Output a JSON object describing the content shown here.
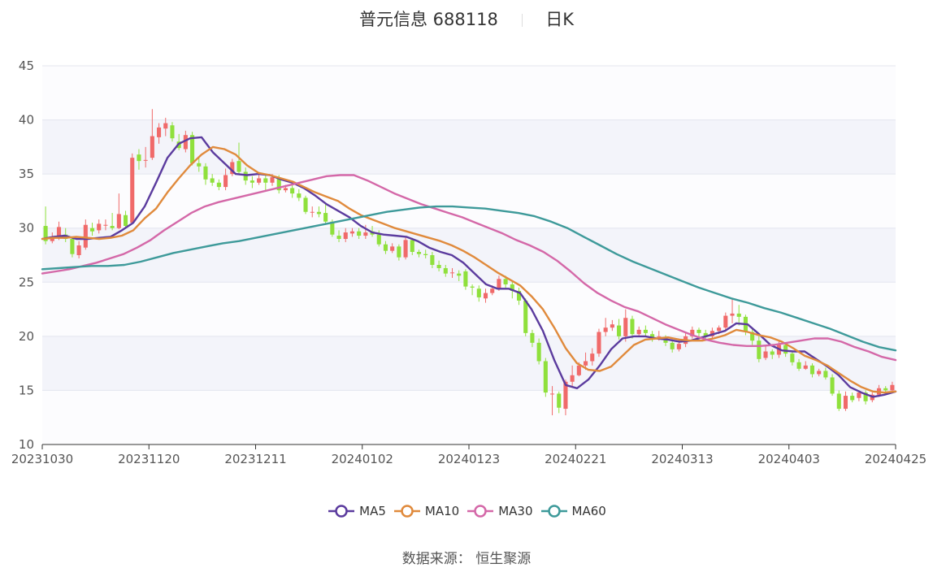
{
  "header": {
    "stock": "普元信息 688118",
    "period": "日K"
  },
  "source": {
    "label": "数据来源：",
    "provider": "恒生聚源"
  },
  "chart_data": {
    "type": "candlestick",
    "ylim": [
      10,
      45
    ],
    "yticks": [
      10,
      15,
      20,
      25,
      30,
      35,
      40,
      45
    ],
    "xticks": [
      "20231030",
      "20231120",
      "20231211",
      "20240102",
      "20240123",
      "20240221",
      "20240313",
      "20240403",
      "20240425"
    ],
    "up_color": "#f06a6a",
    "down_color": "#8fe03c",
    "series": [
      {
        "name": "MA5",
        "color": "#5b3b9e",
        "values": [
          29.0,
          29.2,
          29.3,
          29.0,
          29.0,
          29.1,
          29.2,
          29.8,
          30.5,
          32.0,
          34.2,
          36.5,
          37.8,
          38.3,
          38.4,
          37.0,
          36.0,
          35.0,
          34.9,
          35.0,
          34.9,
          34.5,
          34.2,
          33.7,
          33.0,
          32.2,
          31.6,
          31.0,
          30.2,
          29.6,
          29.4,
          29.3,
          29.2,
          28.8,
          28.2,
          27.8,
          27.5,
          26.8,
          25.8,
          24.8,
          24.4,
          24.4,
          24.0,
          22.5,
          20.5,
          17.8,
          15.5,
          15.2,
          16.0,
          17.3,
          18.8,
          19.8,
          20.0,
          20.0,
          19.8,
          19.7,
          19.5,
          19.6,
          19.9,
          20.2,
          20.5,
          21.2,
          21.1,
          20.2,
          19.2,
          18.7,
          18.6,
          18.6,
          17.9,
          17.2,
          16.4,
          15.3,
          14.8,
          14.4,
          14.6,
          14.9
        ]
      },
      {
        "name": "MA10",
        "color": "#e08a3c",
        "values": [
          29.0,
          29.1,
          29.1,
          29.2,
          29.1,
          29.0,
          29.1,
          29.3,
          29.8,
          30.9,
          31.8,
          33.3,
          34.6,
          35.8,
          36.8,
          37.5,
          37.3,
          36.8,
          35.8,
          35.1,
          34.9,
          34.6,
          34.3,
          33.8,
          33.3,
          32.9,
          32.5,
          31.8,
          31.2,
          30.8,
          30.4,
          30.0,
          29.7,
          29.4,
          29.1,
          28.8,
          28.4,
          27.9,
          27.3,
          26.6,
          25.9,
          25.3,
          24.7,
          23.7,
          22.5,
          20.8,
          18.9,
          17.5,
          16.9,
          16.8,
          17.2,
          18.2,
          19.2,
          19.7,
          19.8,
          19.9,
          19.7,
          19.6,
          19.6,
          19.8,
          20.1,
          20.6,
          20.4,
          20.1,
          19.9,
          19.5,
          18.9,
          18.2,
          17.8,
          17.3,
          16.6,
          15.9,
          15.3,
          14.9,
          14.8,
          14.9
        ]
      },
      {
        "name": "MA30",
        "color": "#d468a8",
        "values": [
          25.8,
          26.0,
          26.2,
          26.5,
          26.8,
          27.2,
          27.6,
          28.2,
          28.9,
          29.8,
          30.6,
          31.4,
          32.0,
          32.4,
          32.7,
          33.0,
          33.3,
          33.6,
          33.9,
          34.2,
          34.5,
          34.8,
          34.9,
          34.9,
          34.4,
          33.8,
          33.2,
          32.7,
          32.2,
          31.8,
          31.4,
          31.0,
          30.5,
          30.0,
          29.5,
          28.9,
          28.4,
          27.8,
          27.0,
          26.0,
          24.9,
          24.0,
          23.3,
          22.7,
          22.3,
          21.7,
          21.1,
          20.6,
          20.1,
          19.7,
          19.4,
          19.2,
          19.1,
          19.1,
          19.2,
          19.4,
          19.6,
          19.8,
          19.8,
          19.5,
          19.0,
          18.6,
          18.1,
          17.8
        ]
      },
      {
        "name": "MA60",
        "color": "#3e9a9a",
        "values": [
          26.2,
          26.3,
          26.4,
          26.5,
          26.5,
          26.6,
          26.9,
          27.3,
          27.7,
          28.0,
          28.3,
          28.6,
          28.8,
          29.1,
          29.4,
          29.7,
          30.0,
          30.3,
          30.6,
          30.9,
          31.2,
          31.5,
          31.7,
          31.9,
          32.0,
          32.0,
          31.9,
          31.8,
          31.6,
          31.4,
          31.1,
          30.6,
          30.0,
          29.2,
          28.4,
          27.6,
          26.9,
          26.3,
          25.7,
          25.1,
          24.5,
          24.0,
          23.5,
          23.1,
          22.6,
          22.2,
          21.7,
          21.2,
          20.7,
          20.1,
          19.5,
          19.0,
          18.7
        ]
      }
    ],
    "candles": [
      [
        30.2,
        28.8,
        32.0,
        28.5
      ],
      [
        28.8,
        29.2,
        29.6,
        28.6
      ],
      [
        29.2,
        30.1,
        30.6,
        28.9
      ],
      [
        29.4,
        29.0,
        30.0,
        28.7
      ],
      [
        29.0,
        27.6,
        29.2,
        27.3
      ],
      [
        27.5,
        28.4,
        28.8,
        27.2
      ],
      [
        28.2,
        30.3,
        30.8,
        28.0
      ],
      [
        30.0,
        29.7,
        30.5,
        29.3
      ],
      [
        29.8,
        30.4,
        30.8,
        29.5
      ],
      [
        30.3,
        30.3,
        30.8,
        29.8
      ],
      [
        30.2,
        30.0,
        31.4,
        29.8
      ],
      [
        30.0,
        31.3,
        33.2,
        29.9
      ],
      [
        31.2,
        30.2,
        31.6,
        30.0
      ],
      [
        30.5,
        36.5,
        36.9,
        30.4
      ],
      [
        36.8,
        36.2,
        37.3,
        35.4
      ],
      [
        36.3,
        36.3,
        37.5,
        35.6
      ],
      [
        36.5,
        38.5,
        41.0,
        36.3
      ],
      [
        38.4,
        39.3,
        39.7,
        37.8
      ],
      [
        39.2,
        39.7,
        40.2,
        38.5
      ],
      [
        39.5,
        38.3,
        39.8,
        38.0
      ],
      [
        38.0,
        37.4,
        38.7,
        37.2
      ],
      [
        37.3,
        38.6,
        39.0,
        37.0
      ],
      [
        38.6,
        36.0,
        38.9,
        35.8
      ],
      [
        36.0,
        35.7,
        36.5,
        35.2
      ],
      [
        35.7,
        34.5,
        36.0,
        34.0
      ],
      [
        34.6,
        34.2,
        35.0,
        33.9
      ],
      [
        34.2,
        33.8,
        34.5,
        33.5
      ],
      [
        33.8,
        34.9,
        35.5,
        33.5
      ],
      [
        35.0,
        36.1,
        36.4,
        34.8
      ],
      [
        36.2,
        35.2,
        37.9,
        35.0
      ],
      [
        35.2,
        34.4,
        35.6,
        34.0
      ],
      [
        34.4,
        34.2,
        34.8,
        33.7
      ],
      [
        34.2,
        34.6,
        35.0,
        34.0
      ],
      [
        34.6,
        34.2,
        35.0,
        33.5
      ],
      [
        34.2,
        34.7,
        35.0,
        33.9
      ],
      [
        34.7,
        33.5,
        34.9,
        33.2
      ],
      [
        33.5,
        33.7,
        34.0,
        33.3
      ],
      [
        33.7,
        33.2,
        34.0,
        32.8
      ],
      [
        33.2,
        32.8,
        33.6,
        32.5
      ],
      [
        32.8,
        31.5,
        33.0,
        31.3
      ],
      [
        31.5,
        31.5,
        32.0,
        31.0
      ],
      [
        31.5,
        31.3,
        32.0,
        31.0
      ],
      [
        31.4,
        30.6,
        32.2,
        30.3
      ],
      [
        30.6,
        29.4,
        30.8,
        29.2
      ],
      [
        29.3,
        29.0,
        29.8,
        28.7
      ],
      [
        29.0,
        29.6,
        30.0,
        28.7
      ],
      [
        29.5,
        29.7,
        30.0,
        29.2
      ],
      [
        29.7,
        29.3,
        30.0,
        29.0
      ],
      [
        29.3,
        29.6,
        30.3,
        29.0
      ],
      [
        29.7,
        29.4,
        30.2,
        29.2
      ],
      [
        29.4,
        28.5,
        29.8,
        28.3
      ],
      [
        28.5,
        27.9,
        28.8,
        27.6
      ],
      [
        27.9,
        28.3,
        28.6,
        27.7
      ],
      [
        28.3,
        27.3,
        28.5,
        27.0
      ],
      [
        27.3,
        28.9,
        29.2,
        27.1
      ],
      [
        28.9,
        27.8,
        29.1,
        27.5
      ],
      [
        27.8,
        27.6,
        28.0,
        27.3
      ],
      [
        27.6,
        27.5,
        28.0,
        27.2
      ],
      [
        27.5,
        26.6,
        27.8,
        26.3
      ],
      [
        26.6,
        26.3,
        27.0,
        26.0
      ],
      [
        26.3,
        25.8,
        26.6,
        25.5
      ],
      [
        25.9,
        25.9,
        26.3,
        25.4
      ],
      [
        25.8,
        25.6,
        26.1,
        25.1
      ],
      [
        26.0,
        24.6,
        26.2,
        24.3
      ],
      [
        24.6,
        24.5,
        24.8,
        23.8
      ],
      [
        24.4,
        23.6,
        24.7,
        23.2
      ],
      [
        23.5,
        24.0,
        24.4,
        23.1
      ],
      [
        24.0,
        24.4,
        24.7,
        23.8
      ],
      [
        24.4,
        25.3,
        25.6,
        24.2
      ],
      [
        25.3,
        24.8,
        25.6,
        24.4
      ],
      [
        24.8,
        24.2,
        25.1,
        23.5
      ],
      [
        24.2,
        23.3,
        24.5,
        22.9
      ],
      [
        23.3,
        20.3,
        23.5,
        20.0
      ],
      [
        20.3,
        19.4,
        20.6,
        19.0
      ],
      [
        19.4,
        17.7,
        19.8,
        17.4
      ],
      [
        17.7,
        14.8,
        18.0,
        14.4
      ],
      [
        14.7,
        14.7,
        15.4,
        12.7
      ],
      [
        14.7,
        13.4,
        14.9,
        12.9
      ],
      [
        13.3,
        15.8,
        16.0,
        12.7
      ],
      [
        15.8,
        16.4,
        17.3,
        15.4
      ],
      [
        16.4,
        17.3,
        17.6,
        16.3
      ],
      [
        17.3,
        17.7,
        18.5,
        16.9
      ],
      [
        17.7,
        18.4,
        18.9,
        17.3
      ],
      [
        18.4,
        20.4,
        20.7,
        18.1
      ],
      [
        20.4,
        20.8,
        21.7,
        20.0
      ],
      [
        20.8,
        21.1,
        21.5,
        20.5
      ],
      [
        21.0,
        20.0,
        21.6,
        19.7
      ],
      [
        20.0,
        21.7,
        22.5,
        19.5
      ],
      [
        21.6,
        20.2,
        21.9,
        19.8
      ],
      [
        20.2,
        20.6,
        20.9,
        20.0
      ],
      [
        20.6,
        20.3,
        21.0,
        20.0
      ],
      [
        20.2,
        19.9,
        20.5,
        19.5
      ],
      [
        20.0,
        20.0,
        20.5,
        19.6
      ],
      [
        19.9,
        19.4,
        20.1,
        19.1
      ],
      [
        19.4,
        18.8,
        19.7,
        18.5
      ],
      [
        18.8,
        19.3,
        19.8,
        18.6
      ],
      [
        19.3,
        20.0,
        20.3,
        19.0
      ],
      [
        20.0,
        20.6,
        20.9,
        19.8
      ],
      [
        20.6,
        20.3,
        20.8,
        19.7
      ],
      [
        20.3,
        20.0,
        20.6,
        19.6
      ],
      [
        20.0,
        20.5,
        20.8,
        19.8
      ],
      [
        20.5,
        20.8,
        21.0,
        20.2
      ],
      [
        20.8,
        21.9,
        22.2,
        20.6
      ],
      [
        21.9,
        22.1,
        23.4,
        21.2
      ],
      [
        22.1,
        21.8,
        22.9,
        21.0
      ],
      [
        21.8,
        20.4,
        22.0,
        20.1
      ],
      [
        20.4,
        19.6,
        20.8,
        19.2
      ],
      [
        19.6,
        17.9,
        20.0,
        17.6
      ],
      [
        18.0,
        18.6,
        19.1,
        17.8
      ],
      [
        18.6,
        18.3,
        18.8,
        17.9
      ],
      [
        18.3,
        19.2,
        19.5,
        18.0
      ],
      [
        19.2,
        18.4,
        19.4,
        18.1
      ],
      [
        18.4,
        17.6,
        18.7,
        17.3
      ],
      [
        17.6,
        17.0,
        17.9,
        16.8
      ],
      [
        17.0,
        17.3,
        17.7,
        16.9
      ],
      [
        17.3,
        16.5,
        17.5,
        16.2
      ],
      [
        16.5,
        16.8,
        17.0,
        16.3
      ],
      [
        16.8,
        16.2,
        17.1,
        16.0
      ],
      [
        16.2,
        14.7,
        16.5,
        14.5
      ],
      [
        14.7,
        13.3,
        15.0,
        13.1
      ],
      [
        13.3,
        14.5,
        14.9,
        13.1
      ],
      [
        14.5,
        14.1,
        14.8,
        13.9
      ],
      [
        14.3,
        14.8,
        14.9,
        14.0
      ],
      [
        14.8,
        14.0,
        15.0,
        13.7
      ],
      [
        14.1,
        14.6,
        14.8,
        13.9
      ],
      [
        14.6,
        15.2,
        15.5,
        14.4
      ],
      [
        15.2,
        15.0,
        15.4,
        14.7
      ],
      [
        15.0,
        15.5,
        15.8,
        14.9
      ]
    ]
  }
}
